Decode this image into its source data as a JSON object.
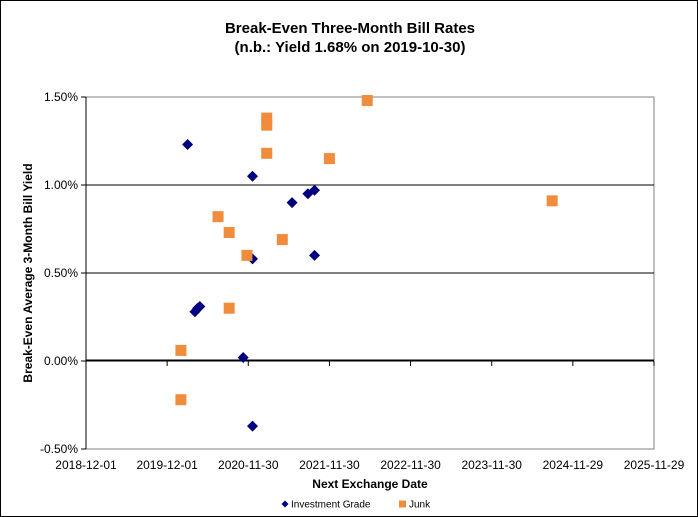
{
  "chart_data": {
    "type": "scatter",
    "title": "Break-Even Three-Month Bill Rates",
    "subtitle": "(n.b.: Yield  1.68% on 2019-10-30)",
    "xlabel": "Next Exchange Date",
    "ylabel": "Break-Even Average 3-Month  Bill Yield",
    "x_tick_labels": [
      "2018-12-01",
      "2019-12-01",
      "2020-11-30",
      "2021-11-30",
      "2022-11-30",
      "2023-11-30",
      "2024-11-29",
      "2025-11-29"
    ],
    "y_tick_labels": [
      "1.50%",
      "1.00%",
      "0.50%",
      "0.00%",
      "-0.50%"
    ],
    "xlim": [
      "2018-12-01",
      "2025-11-29"
    ],
    "ylim": [
      -0.5,
      1.5
    ],
    "grid": "horizontal major gridlines",
    "legend_position": "bottom",
    "series": [
      {
        "name": "Investment Grade",
        "marker": "diamond",
        "color": "#000080",
        "points": [
          {
            "x": "2020-03-02",
            "y": 1.23
          },
          {
            "x": "2020-04-04",
            "y": 0.28
          },
          {
            "x": "2020-04-16",
            "y": 0.3
          },
          {
            "x": "2020-04-26",
            "y": 0.31
          },
          {
            "x": "2020-11-07",
            "y": 0.02
          },
          {
            "x": "2020-12-19",
            "y": 1.05
          },
          {
            "x": "2020-12-19",
            "y": 0.58
          },
          {
            "x": "2020-12-19",
            "y": -0.37
          },
          {
            "x": "2021-06-15",
            "y": 0.9
          },
          {
            "x": "2021-08-25",
            "y": 0.95
          },
          {
            "x": "2021-09-24",
            "y": 0.97
          },
          {
            "x": "2021-09-24",
            "y": 0.6
          }
        ]
      },
      {
        "name": "Junk",
        "marker": "square",
        "color": "#F08C3C",
        "points": [
          {
            "x": "2020-02-01",
            "y": 0.06
          },
          {
            "x": "2020-02-01",
            "y": -0.22
          },
          {
            "x": "2020-07-17",
            "y": 0.82
          },
          {
            "x": "2020-09-05",
            "y": 0.73
          },
          {
            "x": "2020-09-05",
            "y": 0.3
          },
          {
            "x": "2020-11-24",
            "y": 0.6
          },
          {
            "x": "2021-02-21",
            "y": 1.38
          },
          {
            "x": "2021-02-21",
            "y": 1.34
          },
          {
            "x": "2021-02-21",
            "y": 1.18
          },
          {
            "x": "2021-05-02",
            "y": 0.69
          },
          {
            "x": "2021-11-30",
            "y": 1.15
          },
          {
            "x": "2022-05-19",
            "y": 1.48
          },
          {
            "x": "2024-08-28",
            "y": 0.91
          }
        ]
      }
    ]
  }
}
